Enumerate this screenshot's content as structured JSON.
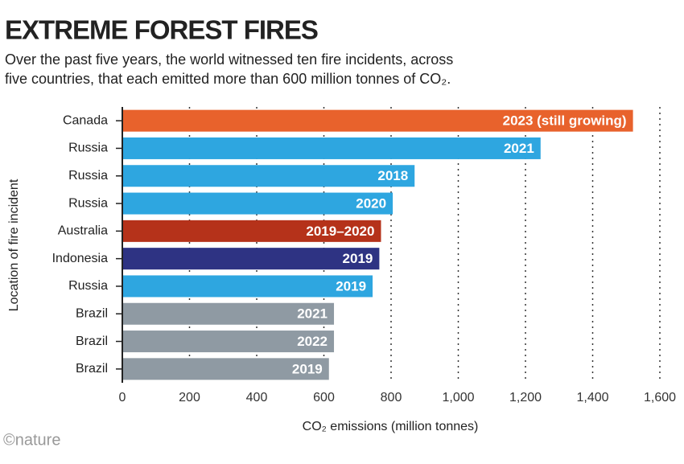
{
  "chart_data": {
    "type": "bar",
    "orientation": "horizontal",
    "title": "EXTREME FOREST FIRES",
    "subtitle": [
      "Over the past five years, the world witnessed ten fire incidents, across",
      "five countries, that each emitted more than 600 million tonnes of CO₂."
    ],
    "categories": [
      "Canada",
      "Russia",
      "Russia",
      "Russia",
      "Australia",
      "Indonesia",
      "Russia",
      "Brazil",
      "Brazil",
      "Brazil"
    ],
    "values": [
      1520,
      1245,
      870,
      805,
      770,
      765,
      745,
      630,
      630,
      615
    ],
    "labels": [
      "2023 (still growing)",
      "2021",
      "2018",
      "2020",
      "2019–2020",
      "2019",
      "2019",
      "2021",
      "2022",
      "2019"
    ],
    "colors": [
      "#e8622c",
      "#2ea6e0",
      "#2ea6e0",
      "#2ea6e0",
      "#b5321a",
      "#2e3383",
      "#2ea6e0",
      "#8f9aa3",
      "#8f9aa3",
      "#8f9aa3"
    ],
    "xlim": [
      0,
      1600
    ],
    "xticks": [
      0,
      200,
      400,
      600,
      800,
      {
        "value": 1000,
        "label": "1,000"
      },
      {
        "value": 1200,
        "label": "1,200"
      },
      {
        "value": 1400,
        "label": "1,400"
      },
      {
        "value": 1600,
        "label": "1,600"
      }
    ],
    "xlabel": "CO₂ emissions (million tonnes)",
    "ylabel": "Location of fire incident",
    "grid": true,
    "source": "©nature"
  }
}
